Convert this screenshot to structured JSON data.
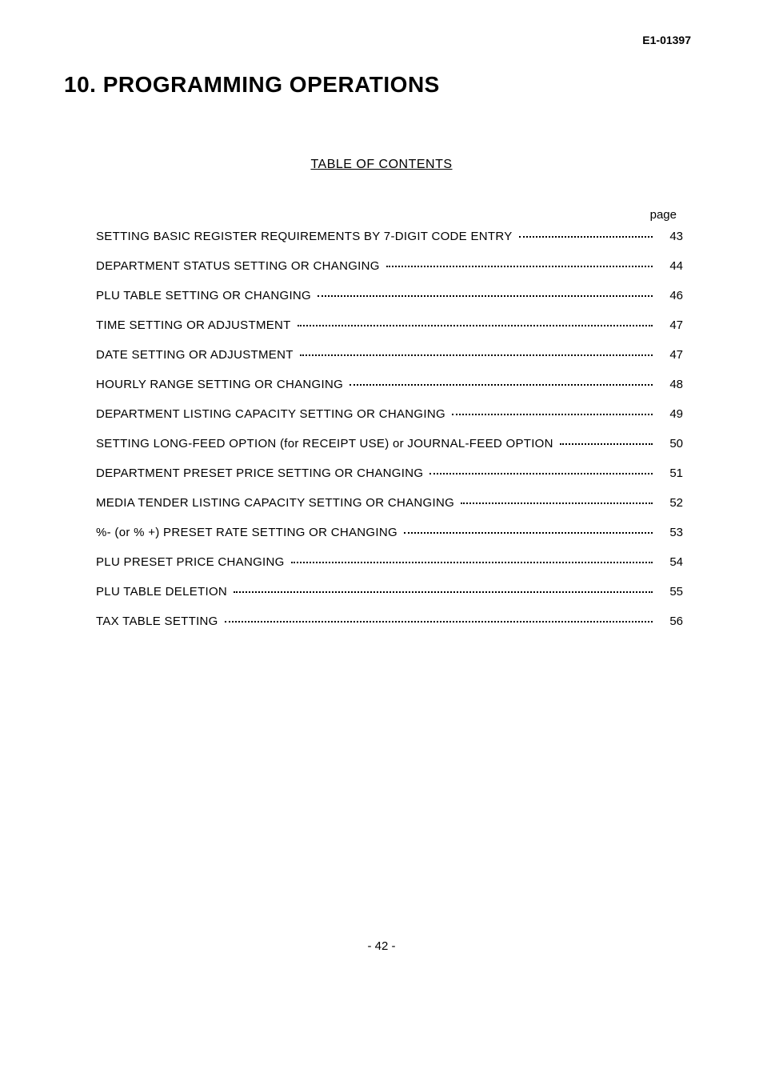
{
  "doc_id": "E1-01397",
  "heading": "10.  PROGRAMMING OPERATIONS",
  "toc_title": "TABLE OF CONTENTS",
  "page_label": "page",
  "entries": [
    {
      "label": "SETTING BASIC REGISTER REQUIREMENTS BY 7-DIGIT CODE ENTRY",
      "page": "43"
    },
    {
      "label": "DEPARTMENT STATUS SETTING OR CHANGING",
      "page": "44"
    },
    {
      "label": "PLU TABLE SETTING OR CHANGING",
      "page": "46"
    },
    {
      "label": "TIME SETTING OR ADJUSTMENT",
      "page": "47"
    },
    {
      "label": "DATE SETTING OR ADJUSTMENT",
      "page": "47"
    },
    {
      "label": "HOURLY RANGE SETTING OR CHANGING",
      "page": "48"
    },
    {
      "label": "DEPARTMENT LISTING CAPACITY SETTING OR CHANGING",
      "page": "49"
    },
    {
      "label": "SETTING LONG-FEED OPTION (for RECEIPT USE) or JOURNAL-FEED OPTION",
      "page": "50"
    },
    {
      "label": "DEPARTMENT PRESET PRICE SETTING OR CHANGING",
      "page": "51"
    },
    {
      "label": "MEDIA TENDER LISTING CAPACITY SETTING OR CHANGING",
      "page": "52"
    },
    {
      "label": "%- (or % +)  PRESET RATE SETTING OR CHANGING",
      "page": "53"
    },
    {
      "label": "PLU PRESET PRICE CHANGING",
      "page": "54"
    },
    {
      "label": "PLU TABLE DELETION",
      "page": "55"
    },
    {
      "label": "TAX TABLE SETTING",
      "page": "56"
    }
  ],
  "page_number": "- 42 -",
  "styling": {
    "background_color": "#ffffff",
    "text_color": "#000000",
    "heading_fontsize": 28,
    "toc_title_fontsize": 16,
    "entry_fontsize": 15,
    "font_family": "Arial, Helvetica, sans-serif",
    "row_spacing": 20
  }
}
